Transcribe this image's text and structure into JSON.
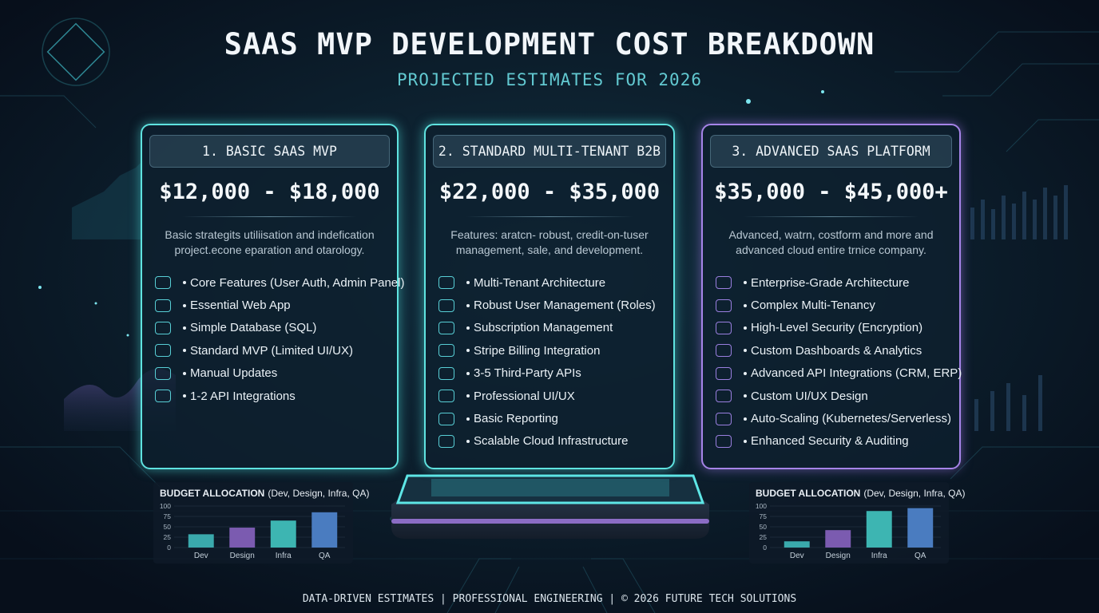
{
  "header": {
    "title": "SAAS MVP DEVELOPMENT COST BREAKDOWN",
    "subtitle": "PROJECTED ESTIMATES FOR 2026"
  },
  "cards": [
    {
      "heading": "1. BASIC SAAS MVP",
      "price": "$12,000 - $18,000",
      "description": [
        "Basic strategits utiliisation and indefication",
        "project.econe eparation and otarology."
      ],
      "features": [
        "Core Features (User Auth, Admin Panel)",
        "Essential Web App",
        "Simple Database (SQL)",
        "Standard MVP (Limited UI/UX)",
        "Manual Updates",
        "1-2 API Integrations"
      ]
    },
    {
      "heading": "2. STANDARD MULTI-TENANT B2B",
      "price": "$22,000 - $35,000",
      "description": [
        "Features: aratcn- robust, credit-on-tuser",
        "management, sale, and development."
      ],
      "features": [
        "Multi-Tenant Architecture",
        "Robust User Management (Roles)",
        "Subscription Management",
        "Stripe Billing Integration",
        "3-5 Third-Party APIs",
        "Professional UI/UX",
        "Basic Reporting",
        "Scalable Cloud Infrastructure"
      ]
    },
    {
      "heading": "3. ADVANCED SAAS PLATFORM",
      "price": "$35,000 - $45,000+",
      "description": [
        "Advanced, watrn, costform and more and",
        "advanced cloud entire trnice company."
      ],
      "features": [
        "Enterprise-Grade Architecture",
        "Complex Multi-Tenancy",
        "High-Level Security (Encryption)",
        "Custom Dashboards & Analytics",
        "Advanced API Integrations (CRM, ERP)",
        "Custom UI/UX Design",
        "Auto-Scaling (Kubernetes/Serverless)",
        "Enhanced Security & Auditing"
      ]
    }
  ],
  "chart_data": [
    {
      "type": "bar",
      "title": "BUDGET ALLOCATION",
      "subtitle": "(Dev, Design, Infra, QA)",
      "categories": [
        "Dev",
        "Design",
        "Infra",
        "QA"
      ],
      "values": [
        32,
        48,
        65,
        85
      ],
      "colors": [
        "#3aa9ac",
        "#7b5bb0",
        "#3db5b2",
        "#4a7cc0"
      ],
      "ylim": [
        0,
        100
      ],
      "yticks": [
        0,
        25,
        50,
        75,
        100
      ]
    },
    {
      "type": "bar",
      "title": "BUDGET ALLOCATION",
      "subtitle": "(Dev, Design, Infra, QA)",
      "categories": [
        "Dev",
        "Design",
        "Infra",
        "QA"
      ],
      "values": [
        15,
        42,
        88,
        95
      ],
      "colors": [
        "#3aa9ac",
        "#7b5bb0",
        "#3db5b2",
        "#4a7cc0"
      ],
      "ylim": [
        0,
        100
      ],
      "yticks": [
        0,
        25,
        50,
        75,
        100
      ]
    }
  ],
  "footer": "DATA-DRIVEN ESTIMATES | PROFESSIONAL ENGINEERING | © 2026 FUTURE TECH SOLUTIONS"
}
